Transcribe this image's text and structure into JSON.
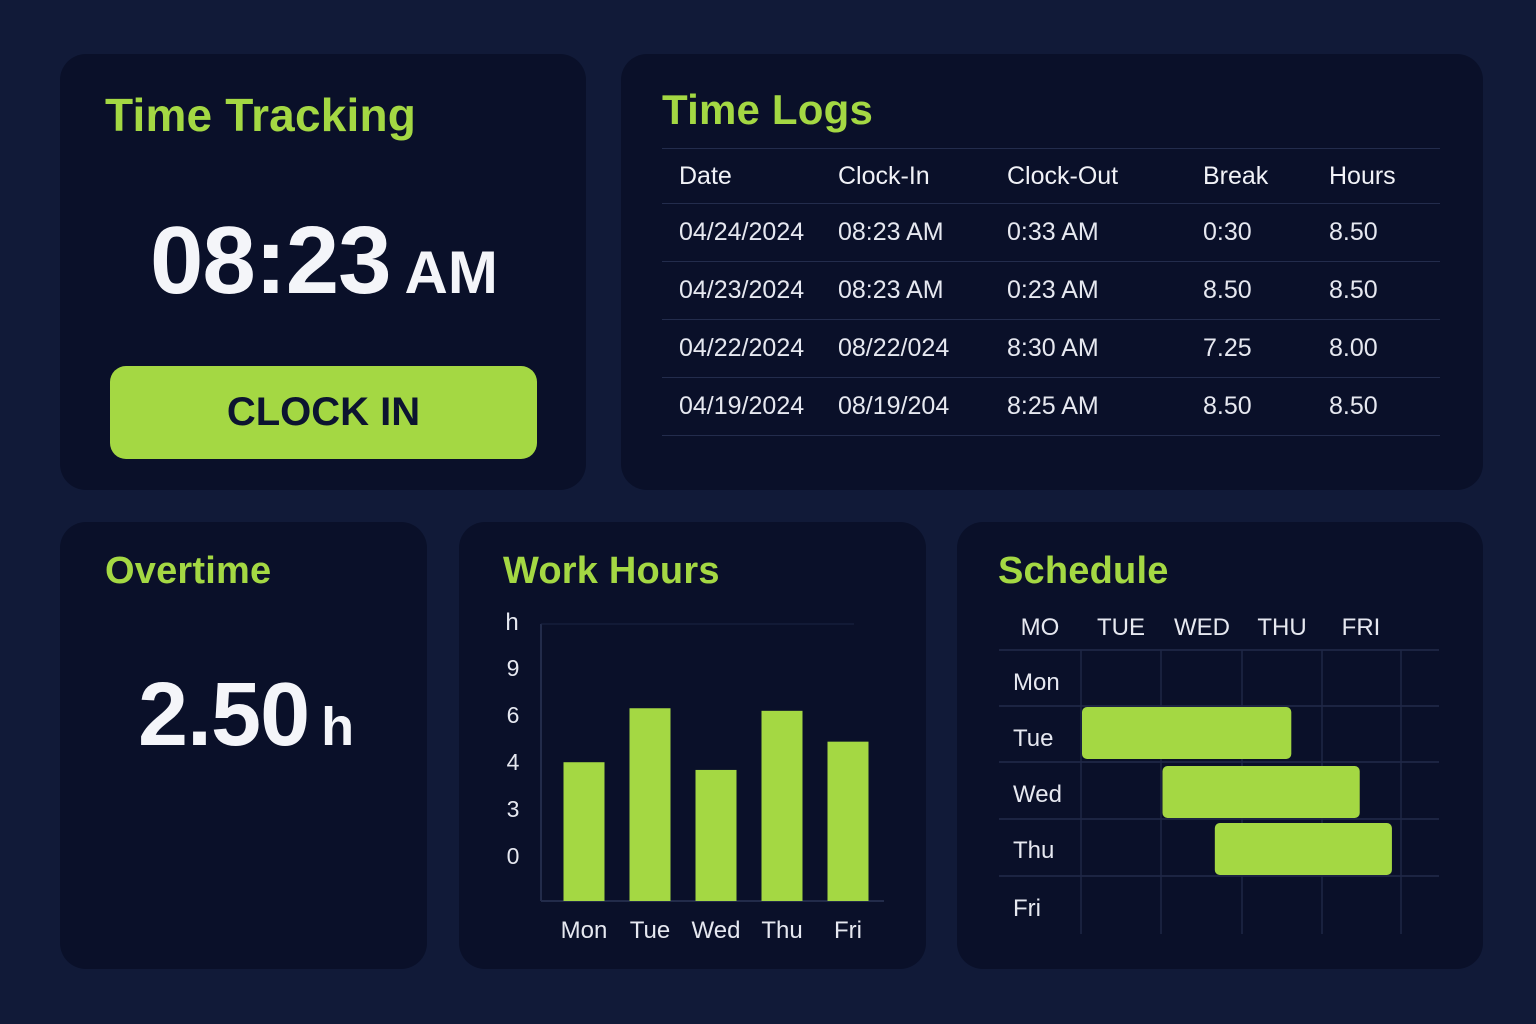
{
  "time_tracking": {
    "title": "Time Tracking",
    "time": "08:23",
    "ampm": "AM",
    "button_label": "CLOCK IN"
  },
  "time_logs": {
    "title": "Time Logs",
    "columns": [
      "Date",
      "Clock-In",
      "Clock-Out",
      "Break",
      "Hours"
    ],
    "rows": [
      [
        "04/24/2024",
        "08:23 AM",
        "0:33 AM",
        "0:30",
        "8.50"
      ],
      [
        "04/23/2024",
        "08:23 AM",
        "0:23 AM",
        "8.50",
        "8.50"
      ],
      [
        "04/22/2024",
        "08/22/024",
        "8:30 AM",
        "7.25",
        "8.00"
      ],
      [
        "04/19/2024",
        "08/19/204",
        "8:25 AM",
        "8.50",
        "8.50"
      ]
    ]
  },
  "overtime": {
    "title": "Overtime",
    "value": "2.50",
    "unit": "h"
  },
  "work_hours": {
    "title": "Work Hours"
  },
  "chart_data": {
    "type": "bar",
    "ylabel": "h",
    "y_ticks": [
      "9",
      "6",
      "4",
      "3",
      "0"
    ],
    "categories": [
      "Mon",
      "Tue",
      "Wed",
      "Thu",
      "Fri"
    ],
    "values": [
      5.4,
      7.5,
      5.1,
      7.4,
      6.2
    ],
    "bar_color": "#a4d843",
    "grid": false
  },
  "schedule": {
    "title": "Schedule",
    "day_columns": [
      "MO",
      "TUE",
      "WED",
      "THU",
      "FRI"
    ],
    "rows": [
      "Mon",
      "Tue",
      "Wed",
      "Thu",
      "Fri"
    ],
    "shifts": [
      {
        "row": "Tue",
        "start": 0.0,
        "end": 2.6
      },
      {
        "row": "Wed",
        "start": 1.0,
        "end": 3.45
      },
      {
        "row": "Thu",
        "start": 1.65,
        "end": 3.85
      }
    ],
    "bar_color": "#a4d843"
  },
  "colors": {
    "background": "#111a38",
    "card": "#0a1029",
    "accent": "#a4d843",
    "text": "#eef0f6"
  }
}
